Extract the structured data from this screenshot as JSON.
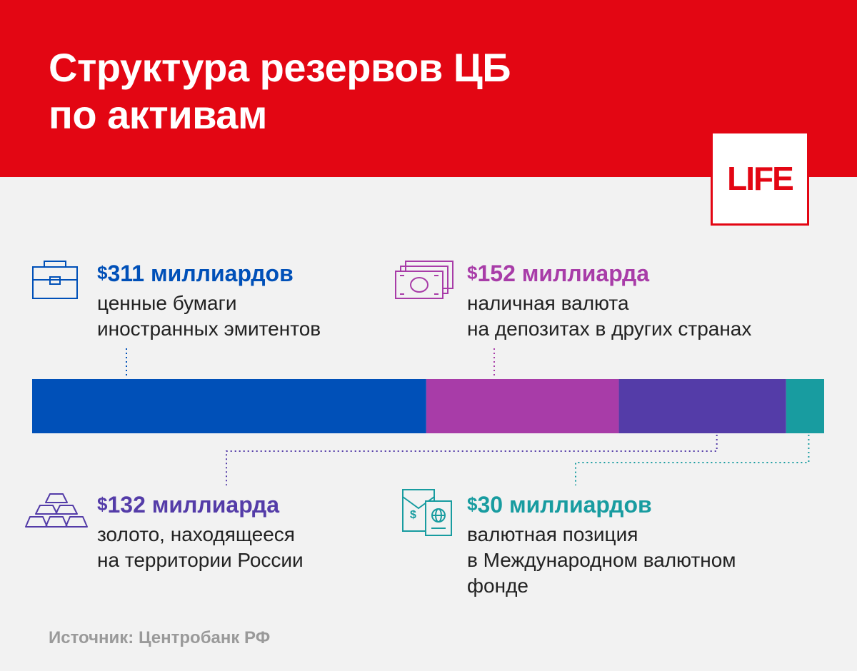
{
  "title": [
    "Структура резервов ЦБ",
    "по активам"
  ],
  "logo": "LIFE",
  "colors": {
    "header": "#e30613",
    "background": "#f2f2f2",
    "securities": "#0050b8",
    "currency": "#a83ca8",
    "gold": "#543ca8",
    "imf": "#189ca0"
  },
  "chart_data": {
    "type": "bar",
    "orientation": "horizontal-stacked",
    "unit": "млрд $",
    "categories": [
      "ценные бумаги иностранных эмитентов",
      "наличная валюта на депозитах в других странах",
      "золото, находящееся на территории России",
      "валютная позиция в Международном валютном фонде"
    ],
    "values": [
      311,
      152,
      132,
      30
    ]
  },
  "callouts": [
    {
      "currency": "$",
      "amount": "311 миллиардов",
      "desc": [
        "ценные бумаги",
        "иностранных эмитентов"
      ],
      "icon": "briefcase-icon",
      "color": "#0050b8"
    },
    {
      "currency": "$",
      "amount": "152 миллиарда",
      "desc": [
        "наличная валюта",
        "на депозитах в других странах"
      ],
      "icon": "banknotes-icon",
      "color": "#a83ca8"
    },
    {
      "currency": "$",
      "amount": "132 миллиарда",
      "desc": [
        "золото, находящееся",
        "на территории России"
      ],
      "icon": "gold-bars-icon",
      "color": "#543ca8"
    },
    {
      "currency": "$",
      "amount": "30 миллиардов",
      "desc": [
        "валютная позиция",
        "в Международном валютном",
        "фонде"
      ],
      "icon": "documents-icon",
      "color": "#189ca0"
    }
  ],
  "source": "Источник: Центробанк РФ"
}
